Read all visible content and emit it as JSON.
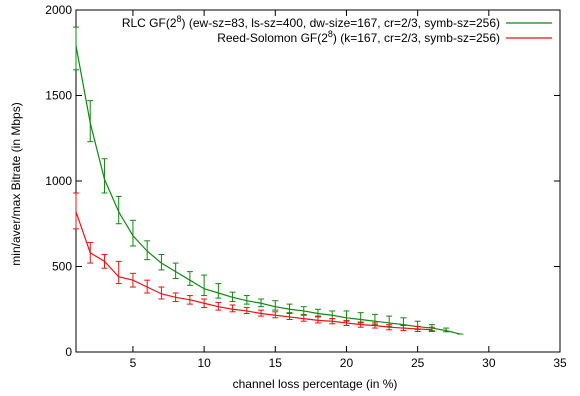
{
  "chart_data": {
    "type": "line",
    "xlabel": "channel loss percentage (in %)",
    "ylabel": "min/aver/max Bitrate (in Mbps)",
    "xlim": [
      1,
      35
    ],
    "ylim": [
      0,
      2000
    ],
    "x_ticks": [
      5,
      10,
      15,
      20,
      25,
      30,
      35
    ],
    "x_tick_labels": [
      "5",
      "10",
      "15",
      "20",
      "25",
      "30",
      "35"
    ],
    "y_ticks": [
      0,
      500,
      1000,
      1500,
      2000
    ],
    "y_tick_labels": [
      "0",
      "500",
      "1000",
      "1500",
      "2000"
    ],
    "grid": false,
    "legend_position": "top-right",
    "series": [
      {
        "name": "RLC GF(2^8) (ew-sz=83, ls-sz=400, dw-size=167, cr=2/3, symb-sz=256)",
        "color": "#118811",
        "x": [
          1,
          2,
          3,
          4,
          5,
          6,
          7,
          8,
          9,
          10,
          11,
          12,
          13,
          14,
          15,
          16,
          17,
          18,
          19,
          20,
          21,
          22,
          23,
          24,
          25,
          26,
          27,
          28
        ],
        "y": [
          1790,
          1340,
          1010,
          820,
          680,
          590,
          520,
          470,
          420,
          370,
          345,
          320,
          300,
          285,
          265,
          250,
          240,
          225,
          215,
          200,
          190,
          180,
          170,
          160,
          148,
          140,
          125,
          105
        ],
        "y_min": [
          1650,
          1230,
          930,
          750,
          620,
          540,
          480,
          430,
          390,
          330,
          315,
          295,
          280,
          265,
          245,
          230,
          220,
          210,
          195,
          180,
          170,
          160,
          150,
          140,
          132,
          125,
          118,
          null
        ],
        "y_max": [
          1900,
          1470,
          1130,
          910,
          770,
          650,
          570,
          520,
          470,
          450,
          400,
          350,
          330,
          310,
          300,
          280,
          265,
          250,
          240,
          240,
          230,
          220,
          210,
          200,
          180,
          160,
          140,
          null
        ]
      },
      {
        "name": "Reed-Solomon GF(2^8) (k=167, cr=2/3, symb-sz=256)",
        "color": "#ee1111",
        "x": [
          1,
          2,
          3,
          4,
          5,
          6,
          7,
          8,
          9,
          10,
          11,
          12,
          13,
          14,
          15,
          16,
          17,
          18,
          19,
          20,
          21,
          22,
          23,
          24,
          25,
          26
        ],
        "y": [
          820,
          580,
          530,
          440,
          420,
          380,
          340,
          320,
          305,
          285,
          265,
          250,
          240,
          225,
          215,
          205,
          195,
          185,
          180,
          170,
          160,
          155,
          145,
          140,
          135,
          130
        ],
        "y_min": [
          720,
          520,
          490,
          400,
          380,
          345,
          310,
          295,
          280,
          260,
          245,
          235,
          225,
          210,
          200,
          190,
          180,
          170,
          165,
          155,
          145,
          140,
          130,
          125,
          120,
          120
        ],
        "y_max": [
          930,
          640,
          570,
          530,
          460,
          420,
          380,
          345,
          330,
          310,
          290,
          275,
          260,
          245,
          235,
          225,
          215,
          205,
          195,
          185,
          175,
          170,
          160,
          155,
          150,
          145
        ]
      }
    ],
    "legend": [
      {
        "label_main": "RLC GF(2",
        "label_sup": "8",
        "label_rest": ") (ew-sz=83, ls-sz=400, dw-size=167, cr=2/3, symb-sz=256)",
        "color": "#118811"
      },
      {
        "label_main": "Reed-Solomon GF(2",
        "label_sup": "8",
        "label_rest": ") (k=167, cr=2/3, symb-sz=256)",
        "color": "#ee1111"
      }
    ]
  }
}
